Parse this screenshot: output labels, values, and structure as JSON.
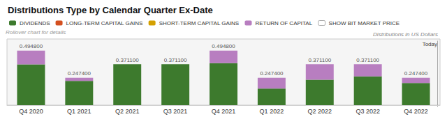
{
  "chart_data": {
    "type": "bar",
    "title": "Distributions Type by Calendar Quarter Ex-Date",
    "subtitle": "Distributions in US Dollars",
    "annotations": [
      "Rollover chart for details",
      "Today"
    ],
    "categories": [
      "Q4 2020",
      "Q1 2021",
      "Q2 2021",
      "Q3 2021",
      "Q4 2021",
      "Q1 2022",
      "Q2 2022",
      "Q3 2022",
      "Q4 2022"
    ],
    "series": [
      {
        "name": "DIVIDENDS",
        "color": "#3d7a2d",
        "values": [
          0.37,
          0.22,
          0.3711,
          0.3711,
          0.38,
          0.15,
          0.23,
          0.26,
          0.2
        ]
      },
      {
        "name": "LONG-TERM CAPITAL GAINS",
        "color": "#d45020",
        "values": [
          null,
          null,
          null,
          null,
          null,
          null,
          null,
          null,
          null
        ]
      },
      {
        "name": "SHORT-TERM CAPITAL GAINS",
        "color": "#d4a000",
        "values": [
          null,
          null,
          null,
          null,
          null,
          null,
          null,
          null,
          null
        ]
      },
      {
        "name": "RETURN OF CAPITAL",
        "color": "#b87ec0",
        "values": [
          0.1248,
          0.0274,
          0.0,
          0.0,
          0.1148,
          0.0974,
          0.1411,
          0.1111,
          0.0474
        ]
      },
      {
        "name": "SHOW BIT MARKET PRICE",
        "color": "#ffffff",
        "values": [
          null,
          null,
          null,
          null,
          null,
          null,
          null,
          null,
          null
        ]
      }
    ],
    "stacked": true,
    "totals": [
      0.4948,
      0.2474,
      0.3711,
      0.3711,
      0.4948,
      0.2474,
      0.3711,
      0.3711,
      0.2474
    ],
    "total_labels": [
      "0.494800",
      "0.247400",
      "0.371100",
      "0.371100",
      "0.494800",
      "0.247400",
      "0.371100",
      "0.371100",
      "0.247400"
    ],
    "ylim": [
      0,
      0.6
    ],
    "tick_labels": "x",
    "grid": false,
    "legend": "upper left"
  }
}
